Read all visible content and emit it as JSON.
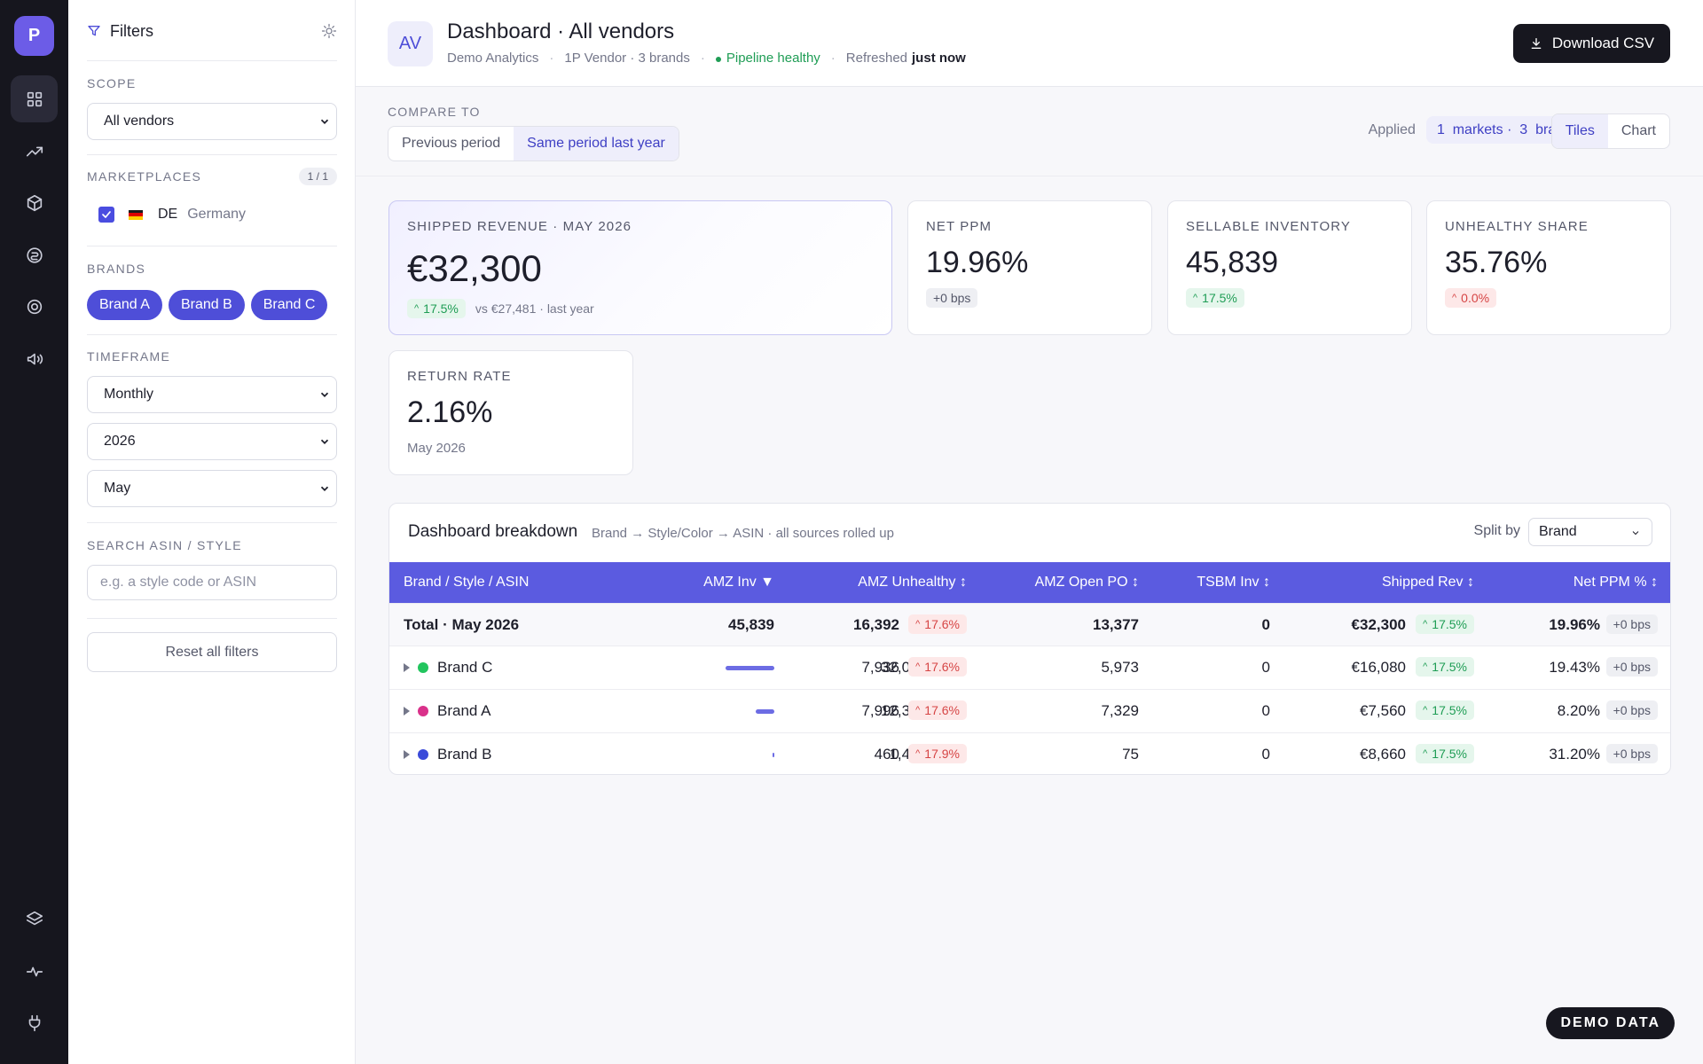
{
  "rail": {
    "logo": "P"
  },
  "filters": {
    "title": "Filters",
    "scope_label": "SCOPE",
    "scope_value": "All vendors",
    "marketplaces_label": "MARKETPLACES",
    "marketplaces_count": "1 / 1",
    "market": {
      "code": "DE",
      "name": "Germany",
      "checked": true
    },
    "brands_label": "BRANDS",
    "brands": [
      "Brand A",
      "Brand B",
      "Brand C"
    ],
    "timeframe_label": "TIMEFRAME",
    "granularity": "Monthly",
    "year": "2026",
    "month": "May",
    "search_label": "SEARCH ASIN / STYLE",
    "search_placeholder": "e.g. a style code or ASIN",
    "reset_label": "Reset all filters"
  },
  "header": {
    "avatar": "AV",
    "title": "Dashboard · All vendors",
    "org": "Demo Analytics",
    "vendor_info": "1P Vendor · 3 brands",
    "pipeline": "Pipeline healthy",
    "refreshed_label": "Refreshed",
    "refreshed_value": "just now",
    "download_label": "Download CSV"
  },
  "compare": {
    "label": "COMPARE TO",
    "options": [
      "Previous period",
      "Same period last year"
    ],
    "selected": "Same period last year",
    "applied_label": "Applied",
    "applied_value": "1  markets ·  3  brands",
    "views": [
      "Tiles",
      "Chart"
    ],
    "selected_view": "Tiles"
  },
  "tiles": [
    {
      "label": "SHIPPED REVENUE · MAY 2026",
      "value": "€32,300",
      "delta": "17.5%",
      "delta_dir": "up",
      "note": "vs €27,481 · last year"
    },
    {
      "label": "NET PPM",
      "value": "19.96%",
      "delta": "+0 bps",
      "delta_dir": "neutral"
    },
    {
      "label": "SELLABLE INVENTORY",
      "value": "45,839",
      "delta": "17.5%",
      "delta_dir": "up"
    },
    {
      "label": "UNHEALTHY SHARE",
      "value": "35.76%",
      "delta": "0.0%",
      "delta_dir": "down"
    },
    {
      "label": "RETURN RATE",
      "value": "2.16%",
      "note": "May 2026"
    }
  ],
  "breakdown": {
    "title": "Dashboard breakdown",
    "subtitle": "Brand → Style/Color → ASIN · all sources rolled up",
    "split_label": "Split by",
    "split_value": "Brand",
    "columns": [
      "Brand / Style / ASIN",
      "AMZ Inv ▼",
      "AMZ Unhealthy ↕",
      "AMZ Open PO ↕",
      "TSBM Inv ↕",
      "Shipped Rev ↕",
      "Net PPM % ↕"
    ],
    "total": {
      "name": "Total · May 2026",
      "inv": "45,839",
      "unhealthy": "16,392",
      "unhealthy_delta": "17.6%",
      "open_po": "13,377",
      "tsbm": "0",
      "rev": "€32,300",
      "rev_delta": "17.5%",
      "ppm": "19.96%",
      "ppm_delta": "+0 bps"
    },
    "rows": [
      {
        "name": "Brand C",
        "color": "#22c55e",
        "inv": "32,062",
        "inv_share": 0.699,
        "unhealthy": "7,936",
        "unhealthy_delta": "17.6%",
        "open_po": "5,973",
        "tsbm": "0",
        "rev": "€16,080",
        "rev_delta": "17.5%",
        "ppm": "19.43%",
        "ppm_delta": "+0 bps"
      },
      {
        "name": "Brand A",
        "color": "#d9318a",
        "inv": "12,374",
        "inv_share": 0.27,
        "unhealthy": "7,996",
        "unhealthy_delta": "17.6%",
        "open_po": "7,329",
        "tsbm": "0",
        "rev": "€7,560",
        "rev_delta": "17.5%",
        "ppm": "8.20%",
        "ppm_delta": "+0 bps"
      },
      {
        "name": "Brand B",
        "color": "#3b4bd9",
        "inv": "1,403",
        "inv_share": 0.031,
        "unhealthy": "460",
        "unhealthy_delta": "17.9%",
        "open_po": "75",
        "tsbm": "0",
        "rev": "€8,660",
        "rev_delta": "17.5%",
        "ppm": "31.20%",
        "ppm_delta": "+0 bps"
      }
    ]
  },
  "badge": "DEMO DATA",
  "colors": {
    "accent": "#5b5be0",
    "rail": "#16161e",
    "positive": "#1f9d55",
    "negative": "#d64545"
  }
}
